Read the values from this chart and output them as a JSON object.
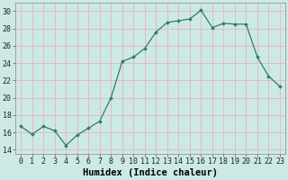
{
  "xlabel": "Humidex (Indice chaleur)",
  "x": [
    0,
    1,
    2,
    3,
    4,
    5,
    6,
    7,
    8,
    9,
    10,
    11,
    12,
    13,
    14,
    15,
    16,
    17,
    18,
    19,
    20,
    21,
    22,
    23
  ],
  "y": [
    16.7,
    15.8,
    16.7,
    16.2,
    14.5,
    15.7,
    16.5,
    17.3,
    20.0,
    24.2,
    24.7,
    25.7,
    27.6,
    28.7,
    28.9,
    29.1,
    30.1,
    28.1,
    28.6,
    28.5,
    28.5,
    24.7,
    22.5,
    21.3
  ],
  "line_color": "#2e7d6e",
  "bg_color": "#cce9e5",
  "grid_color": "#e8b4b8",
  "tick_label_fontsize": 6,
  "xlabel_fontsize": 7.5,
  "ylim": [
    13.5,
    31
  ],
  "xlim": [
    -0.5,
    23.5
  ],
  "yticks": [
    14,
    16,
    18,
    20,
    22,
    24,
    26,
    28,
    30
  ],
  "xticks": [
    0,
    1,
    2,
    3,
    4,
    5,
    6,
    7,
    8,
    9,
    10,
    11,
    12,
    13,
    14,
    15,
    16,
    17,
    18,
    19,
    20,
    21,
    22,
    23
  ]
}
